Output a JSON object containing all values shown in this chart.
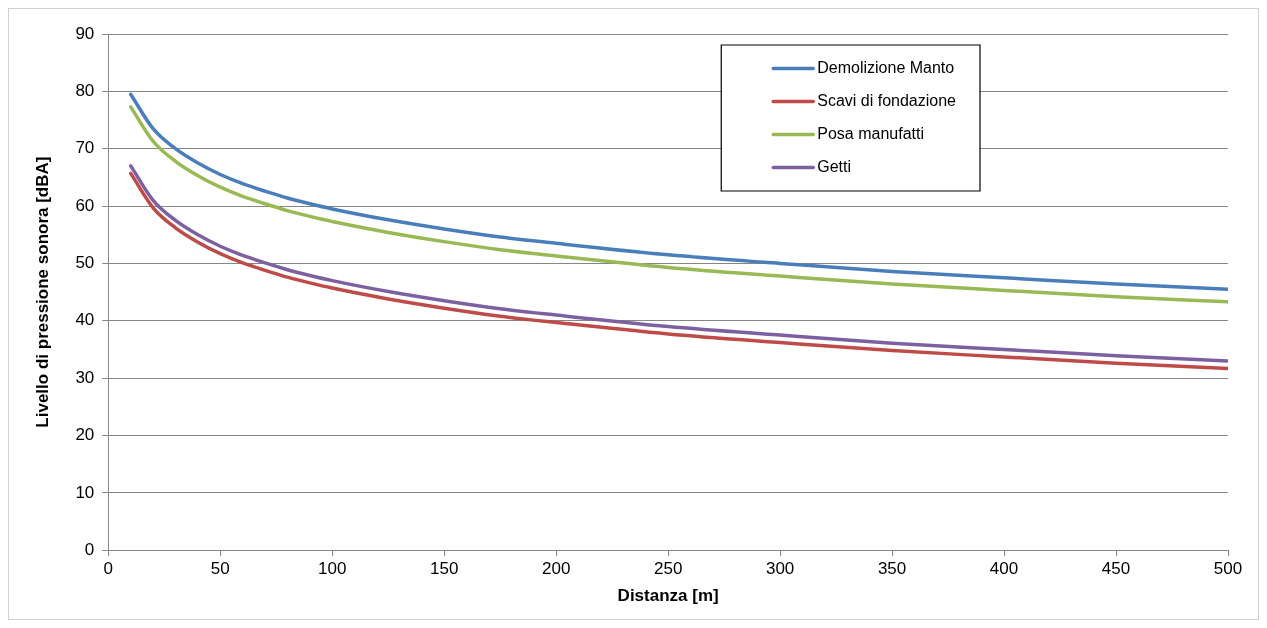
{
  "chart_data": {
    "type": "line",
    "xlabel": "Distanza [m]",
    "ylabel": "Livello di pressione sonora [dBA]",
    "x": [
      10,
      20,
      30,
      40,
      50,
      60,
      70,
      80,
      90,
      100,
      125,
      150,
      175,
      200,
      250,
      300,
      350,
      400,
      450,
      500
    ],
    "xlim": [
      0,
      500
    ],
    "xticks": [
      0,
      50,
      100,
      150,
      200,
      250,
      300,
      350,
      400,
      450,
      500
    ],
    "ylim": [
      0,
      90
    ],
    "yticks": [
      0,
      10,
      20,
      30,
      40,
      50,
      60,
      70,
      80,
      90
    ],
    "grid": "y",
    "legend": "top right",
    "marker": "none",
    "line_style": "solid",
    "series": [
      {
        "name": "Demolizione Manto",
        "color": "#4a7ebb",
        "values": [
          79.5,
          73.5,
          70,
          67.5,
          65.5,
          63.9,
          62.6,
          61.4,
          60.4,
          59.5,
          57.6,
          56,
          54.6,
          53.5,
          51.5,
          50,
          48.6,
          47.5,
          46.4,
          45.5
        ]
      },
      {
        "name": "Scavi di fondazione",
        "color": "#be4b48",
        "values": [
          65.7,
          59.7,
          56.2,
          53.7,
          51.7,
          50.1,
          48.8,
          47.6,
          46.6,
          45.7,
          43.8,
          42.2,
          40.8,
          39.7,
          37.7,
          36.2,
          34.8,
          33.7,
          32.6,
          31.7
        ]
      },
      {
        "name": "Posa manufatti",
        "color": "#98b954",
        "values": [
          77.3,
          71.3,
          67.8,
          65.3,
          63.3,
          61.7,
          60.4,
          59.2,
          58.2,
          57.3,
          55.4,
          53.8,
          52.4,
          51.3,
          49.3,
          47.8,
          46.4,
          45.3,
          44.2,
          43.3
        ]
      },
      {
        "name": "Getti",
        "color": "#7d60a0",
        "values": [
          67,
          61,
          57.5,
          55,
          53,
          51.4,
          50.1,
          48.9,
          47.9,
          47,
          45.1,
          43.5,
          42.1,
          41,
          39,
          37.5,
          36.1,
          35,
          33.9,
          33
        ]
      }
    ]
  }
}
